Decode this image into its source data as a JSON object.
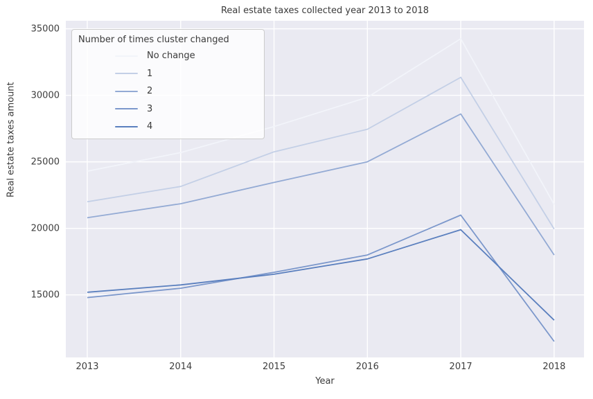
{
  "title": "Real estate taxes collected year 2013 to 2018",
  "axes": {
    "xlabel": "Year",
    "ylabel": "Real estate taxes amount",
    "xticks": [
      2013,
      2014,
      2015,
      2016,
      2017,
      2018
    ],
    "yticks": [
      15000,
      20000,
      25000,
      30000,
      35000
    ]
  },
  "legend": {
    "title": "Number of times cluster changed",
    "entries": [
      "No change",
      "1",
      "2",
      "3",
      "4"
    ]
  },
  "chart_data": {
    "type": "line",
    "title": "Real estate taxes collected year 2013 to 2018",
    "xlabel": "Year",
    "ylabel": "Real estate taxes amount",
    "x": [
      2013,
      2014,
      2015,
      2016,
      2017,
      2018
    ],
    "xlim": [
      2012.77,
      2018.32
    ],
    "ylim": [
      10300,
      35600
    ],
    "grid": true,
    "legend_title": "Number of times cluster changed",
    "legend_position": "upper left",
    "background": "#eaeaf2",
    "grid_color": "#ffffff",
    "series": [
      {
        "name": "No change",
        "color": "#f2f4fa",
        "values": [
          24300,
          25700,
          27650,
          29850,
          34250,
          21800
        ]
      },
      {
        "name": "1",
        "color": "#c3cfe6",
        "values": [
          22000,
          23150,
          25750,
          27450,
          31350,
          19950
        ]
      },
      {
        "name": "2",
        "color": "#93aad4",
        "values": [
          20800,
          21850,
          23450,
          25000,
          28600,
          18000
        ]
      },
      {
        "name": "3",
        "color": "#7b97cb",
        "values": [
          14800,
          15500,
          16700,
          18000,
          21000,
          11500
        ]
      },
      {
        "name": "4",
        "color": "#5a7fbe",
        "values": [
          15200,
          15750,
          16550,
          17700,
          19900,
          13100
        ]
      }
    ]
  }
}
